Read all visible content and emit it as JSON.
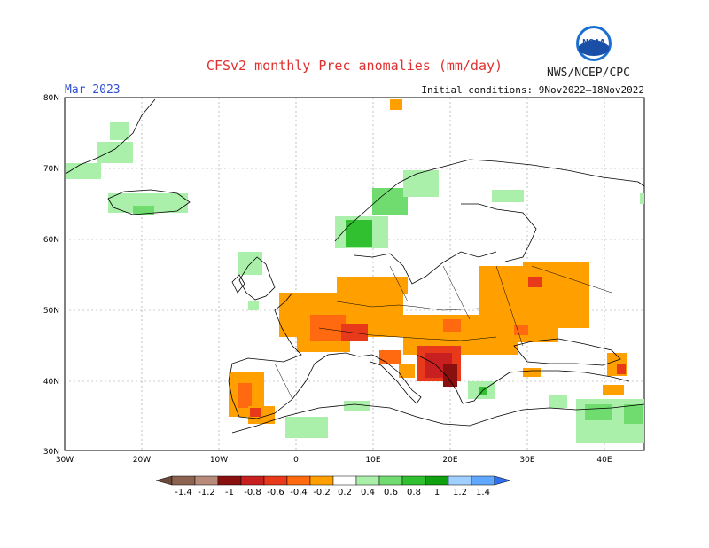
{
  "header": {
    "title": "CFSv2 monthly Prec anomalies (mm/day)",
    "agency": "NWS/NCEP/CPC",
    "month": "Mar 2023",
    "initial_conditions": "Initial conditions: 9Nov2022–18Nov2022",
    "logo_text": "NOAA"
  },
  "map": {
    "lat_labels": [
      "80N",
      "70N",
      "60N",
      "50N",
      "40N",
      "30N"
    ],
    "lon_labels": [
      "30W",
      "20W",
      "10W",
      "0",
      "10E",
      "20E",
      "30E",
      "40E"
    ]
  },
  "colorbar": {
    "labels": [
      "-1.4",
      "-1.2",
      "-1",
      "-0.8",
      "-0.6",
      "-0.4",
      "-0.2",
      "0.2",
      "0.4",
      "0.6",
      "0.8",
      "1",
      "1.2",
      "1.4"
    ],
    "colors": [
      "#6b4a3a",
      "#8c6350",
      "#b88a7a",
      "#8a1010",
      "#c82020",
      "#e83a1a",
      "#ff6a10",
      "#ffa000",
      "#ffffff",
      "#aaf0aa",
      "#70dc70",
      "#30c030",
      "#10a010",
      "#a0d0ff",
      "#60a8ff",
      "#3070f0"
    ]
  }
}
